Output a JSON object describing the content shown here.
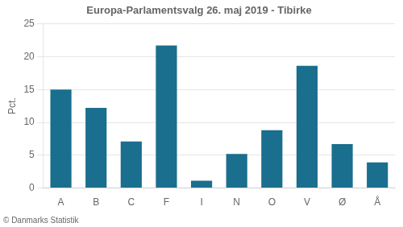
{
  "chart_data": {
    "type": "bar",
    "title": "Europa-Parlamentsvalg 26. maj 2019 - Tibirke",
    "ylabel": "Pct.",
    "annotations": [
      "© Danmarks Statistik"
    ],
    "categories": [
      "A",
      "B",
      "C",
      "F",
      "I",
      "N",
      "O",
      "V",
      "Ø",
      "Å"
    ],
    "values": [
      15.0,
      12.2,
      7.1,
      21.7,
      1.1,
      5.2,
      8.8,
      18.6,
      6.7,
      3.9
    ],
    "color": "#1a6e8e",
    "ylim": [
      0,
      25
    ],
    "yticks": [
      0,
      5,
      10,
      15,
      20,
      25
    ],
    "grid": true
  }
}
